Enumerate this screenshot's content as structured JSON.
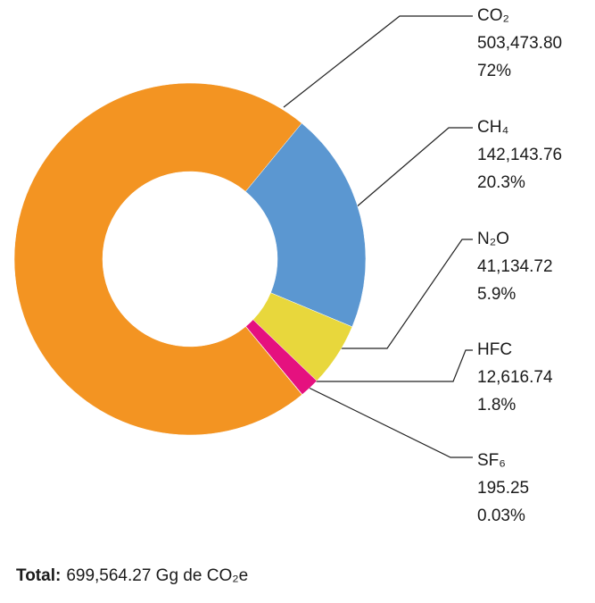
{
  "chart_data": {
    "type": "donut",
    "categories": [
      "CO₂",
      "CH₄",
      "N₂O",
      "HFC",
      "SF₆"
    ],
    "values": [
      503473.8,
      142143.76,
      41134.72,
      12616.74,
      195.25
    ],
    "value_labels": [
      "503,473.80",
      "142,143.76",
      "41,134.72",
      "12,616.74",
      "195.25"
    ],
    "percent_labels": [
      "72%",
      "20.3%",
      "5.9%",
      "1.8%",
      "0.03%"
    ],
    "colors": [
      "#f39422",
      "#5b97d1",
      "#e8d73c",
      "#e5117f",
      "#5fb5a0"
    ],
    "total_label": "Total:",
    "total_text": "699,564.27 Gg de CO₂e"
  }
}
